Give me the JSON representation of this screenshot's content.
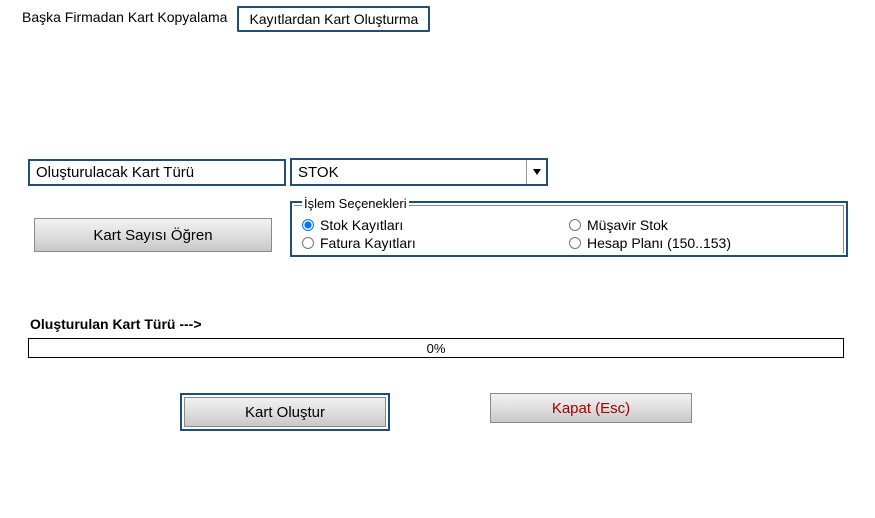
{
  "tabs": {
    "inactive": "Başka Firmadan Kart Kopyalama",
    "active": "Kayıtlardan Kart Oluşturma"
  },
  "form": {
    "label": "Oluşturulacak Kart Türü",
    "selected": "STOK"
  },
  "buttons": {
    "learnCount": "Kart Sayısı Öğren",
    "create": "Kart Oluştur",
    "close": "Kapat (Esc)"
  },
  "fieldset": {
    "legend": "İşlem Seçenekleri",
    "options": {
      "stock": "Stok Kayıtları",
      "advisor": "Müşavir Stok",
      "invoice": "Fatura Kayıtları",
      "plan": "Hesap Planı (150..153)"
    }
  },
  "progress": {
    "label": "Oluşturulan Kart Türü --->",
    "value": "0%"
  }
}
